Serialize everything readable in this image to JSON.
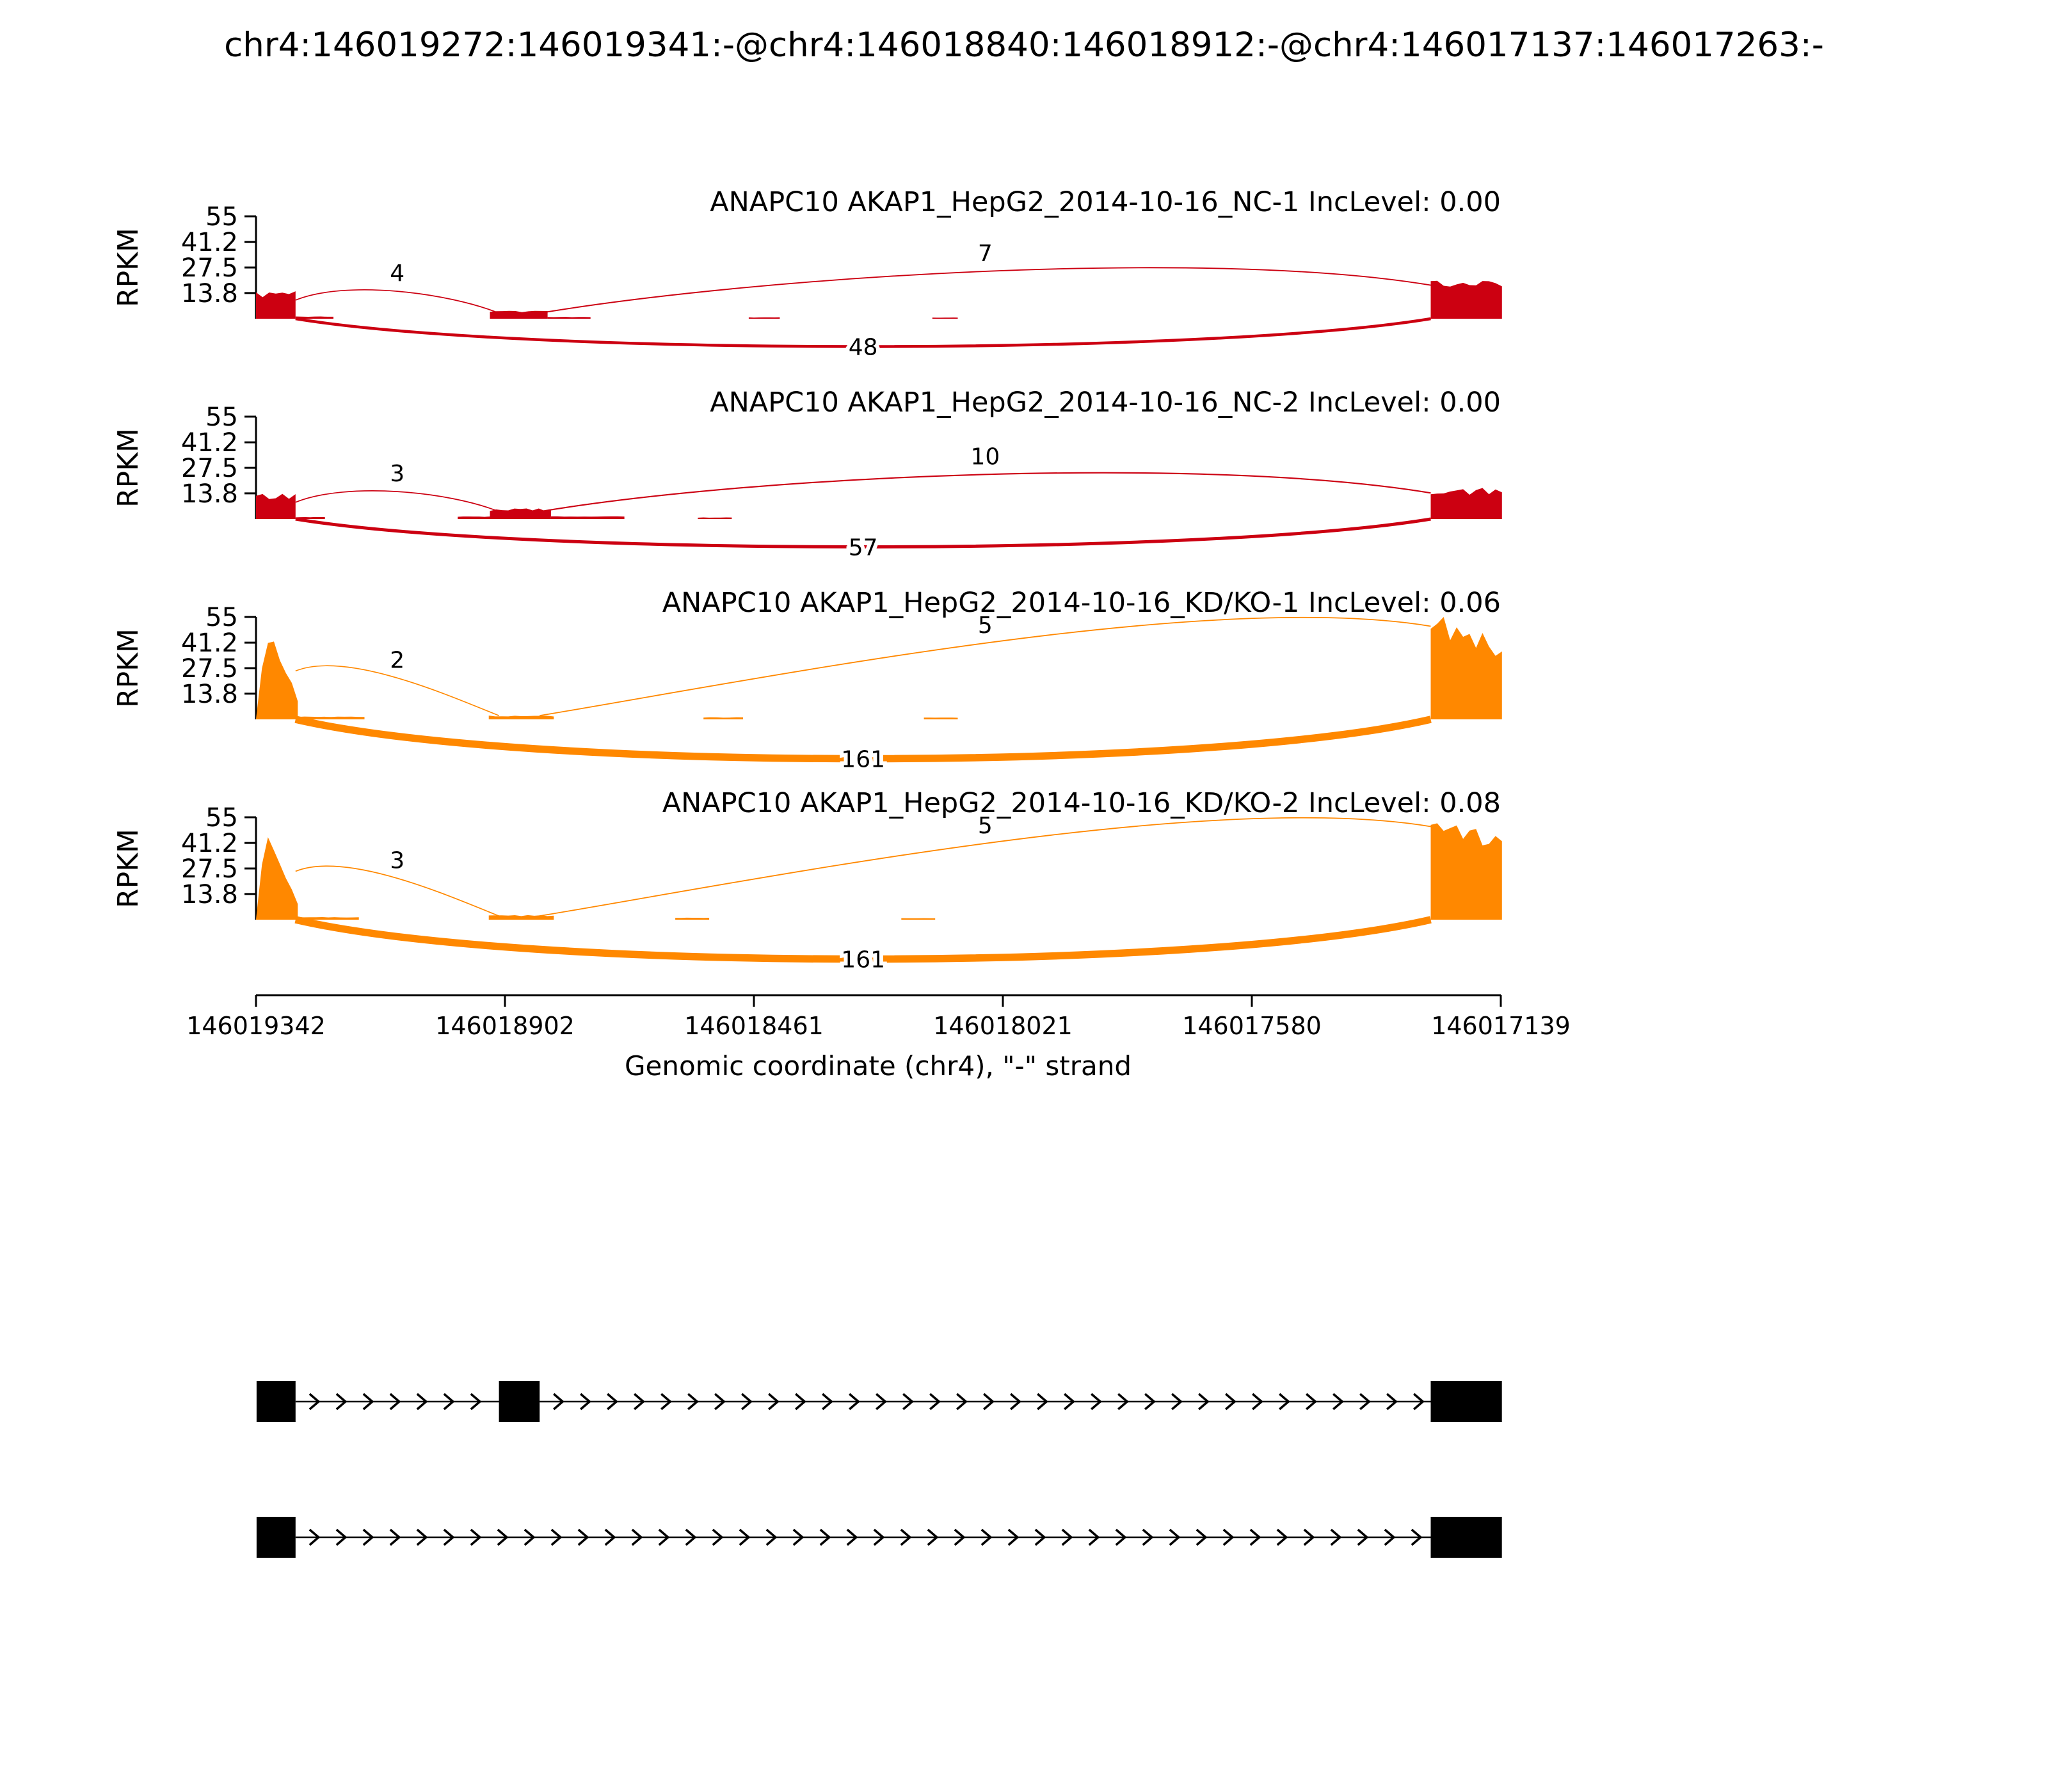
{
  "title": "chr4:146019272:146019341:-@chr4:146018840:146018912:-@chr4:146017137:146017263:-",
  "axes": {
    "ylabel": "RPKM",
    "yticks": [
      55,
      41.2,
      27.5,
      13.8
    ],
    "xlabel": "Genomic coordinate (chr4), \"-\" strand",
    "xticks": [
      "146019342",
      "146018902",
      "146018461",
      "146018021",
      "146017580",
      "146017139"
    ]
  },
  "chart_data": {
    "type": "sashimi",
    "gene": "ANAPC10",
    "chromosome": "chr4",
    "strand": "-",
    "x_range": [
      146019342,
      146017139
    ],
    "ymax": 55,
    "event_exons": [
      {
        "name": "upstream-exon",
        "start": 146019272,
        "end": 146019341
      },
      {
        "name": "skipped-exon",
        "start": 146018840,
        "end": 146018912
      },
      {
        "name": "downstream-exon",
        "start": 146017137,
        "end": 146017263
      }
    ],
    "tracks": [
      {
        "label": "ANAPC10 AKAP1_HepG2_2014-10-16_NC-1 IncLevel: 0.00",
        "sample": "AKAP1_HepG2_2014-10-16_NC-1",
        "inc_level": "0.00",
        "color": "#CC0011",
        "coverage": [
          {
            "name": "upstream-exon-coverage",
            "s": 146019342,
            "e": 146019272,
            "h": 13,
            "shape": "jag"
          },
          {
            "name": "intron-readthrough",
            "s": 146019272,
            "e": 146019205,
            "h": 1.1,
            "shape": "flat"
          },
          {
            "name": "skipped-exon-coverage",
            "s": 146018928,
            "e": 146018826,
            "h": 4,
            "shape": "jag"
          },
          {
            "name": "intron-readthrough",
            "s": 146018826,
            "e": 146018750,
            "h": 0.9,
            "shape": "flat"
          },
          {
            "name": "intron-signal",
            "s": 146018470,
            "e": 146018415,
            "h": 0.7,
            "shape": "flat"
          },
          {
            "name": "intron-signal",
            "s": 146018145,
            "e": 146018100,
            "h": 0.6,
            "shape": "flat"
          },
          {
            "name": "downstream-exon-coverage",
            "s": 146017263,
            "e": 146017137,
            "h": 19,
            "shape": "jag"
          }
        ],
        "junctions": [
          {
            "from": 146019272,
            "to": 146018912,
            "count": 4,
            "side": "top",
            "h1": 10,
            "h2": 3
          },
          {
            "from": 146018840,
            "to": 146017263,
            "count": 7,
            "side": "top",
            "h1": 3,
            "h2": 18
          },
          {
            "from": 146019272,
            "to": 146017263,
            "count": 48,
            "side": "bottom"
          }
        ]
      },
      {
        "label": "ANAPC10 AKAP1_HepG2_2014-10-16_NC-2 IncLevel: 0.00",
        "sample": "AKAP1_HepG2_2014-10-16_NC-2",
        "inc_level": "0.00",
        "color": "#CC0011",
        "coverage": [
          {
            "name": "upstream-exon-coverage",
            "s": 146019342,
            "e": 146019272,
            "h": 12,
            "shape": "jag"
          },
          {
            "name": "intron-readthrough",
            "s": 146019272,
            "e": 146019220,
            "h": 1.0,
            "shape": "flat"
          },
          {
            "name": "intron-readthrough",
            "s": 146018985,
            "e": 146018928,
            "h": 1.3,
            "shape": "flat"
          },
          {
            "name": "skipped-exon-coverage",
            "s": 146018928,
            "e": 146018820,
            "h": 5,
            "shape": "jag"
          },
          {
            "name": "intron-readthrough",
            "s": 146018820,
            "e": 146018690,
            "h": 1.4,
            "shape": "flat"
          },
          {
            "name": "intron-signal",
            "s": 146018560,
            "e": 146018500,
            "h": 0.8,
            "shape": "flat"
          },
          {
            "name": "downstream-exon-coverage",
            "s": 146017263,
            "e": 146017137,
            "h": 15,
            "shape": "jag"
          }
        ],
        "junctions": [
          {
            "from": 146019272,
            "to": 146018912,
            "count": 3,
            "side": "top",
            "h1": 9,
            "h2": 4
          },
          {
            "from": 146018840,
            "to": 146017263,
            "count": 10,
            "side": "top",
            "h1": 4,
            "h2": 14
          },
          {
            "from": 146019272,
            "to": 146017263,
            "count": 57,
            "side": "bottom"
          }
        ]
      },
      {
        "label": "ANAPC10 AKAP1_HepG2_2014-10-16_KD/KO-1 IncLevel: 0.06",
        "sample": "AKAP1_HepG2_2014-10-16_KD/KO-1",
        "inc_level": "0.06",
        "color": "#FF8800",
        "coverage": [
          {
            "name": "upstream-exon-coverage",
            "s": 146019342,
            "e": 146019268,
            "h": 46,
            "shape": "peak"
          },
          {
            "name": "intron-readthrough",
            "s": 146019268,
            "e": 146019150,
            "h": 1.4,
            "shape": "flat"
          },
          {
            "name": "skipped-exon-coverage",
            "s": 146018930,
            "e": 146018815,
            "h": 1.8,
            "shape": "jag"
          },
          {
            "name": "intron-signal",
            "s": 146018550,
            "e": 146018480,
            "h": 1.0,
            "shape": "flat"
          },
          {
            "name": "intron-signal",
            "s": 146018160,
            "e": 146018100,
            "h": 0.9,
            "shape": "flat"
          },
          {
            "name": "downstream-exon-coverage",
            "s": 146017263,
            "e": 146017137,
            "h": 53,
            "shape": "rampdown"
          }
        ],
        "junctions": [
          {
            "from": 146019272,
            "to": 146018912,
            "count": 2,
            "side": "top",
            "h1": 26,
            "h2": 2
          },
          {
            "from": 146018840,
            "to": 146017263,
            "count": 5,
            "side": "top",
            "h1": 2,
            "h2": 50
          },
          {
            "from": 146019272,
            "to": 146017263,
            "count": 161,
            "side": "bottom"
          }
        ]
      },
      {
        "label": "ANAPC10 AKAP1_HepG2_2014-10-16_KD/KO-2 IncLevel: 0.08",
        "sample": "AKAP1_HepG2_2014-10-16_KD/KO-2",
        "inc_level": "0.08",
        "color": "#FF8800",
        "coverage": [
          {
            "name": "upstream-exon-coverage",
            "s": 146019342,
            "e": 146019268,
            "h": 43,
            "shape": "peak"
          },
          {
            "name": "intron-readthrough",
            "s": 146019268,
            "e": 146019160,
            "h": 1.3,
            "shape": "flat"
          },
          {
            "name": "skipped-exon-coverage",
            "s": 146018930,
            "e": 146018815,
            "h": 2.2,
            "shape": "jag"
          },
          {
            "name": "intron-signal",
            "s": 146018600,
            "e": 146018540,
            "h": 1.0,
            "shape": "flat"
          },
          {
            "name": "intron-signal",
            "s": 146018200,
            "e": 146018140,
            "h": 0.8,
            "shape": "flat"
          },
          {
            "name": "downstream-exon-coverage",
            "s": 146017263,
            "e": 146017137,
            "h": 53,
            "shape": "rampdown"
          }
        ],
        "junctions": [
          {
            "from": 146019272,
            "to": 146018912,
            "count": 3,
            "side": "top",
            "h1": 26,
            "h2": 2
          },
          {
            "from": 146018840,
            "to": 146017263,
            "count": 5,
            "side": "top",
            "h1": 2,
            "h2": 50
          },
          {
            "from": 146019272,
            "to": 146017263,
            "count": 161,
            "side": "bottom"
          }
        ]
      }
    ],
    "isoforms": [
      {
        "name": "inclusion-isoform",
        "exons": [
          [
            146019341,
            146019272
          ],
          [
            146018912,
            146018840
          ],
          [
            146017263,
            146017137
          ]
        ]
      },
      {
        "name": "skipping-isoform",
        "exons": [
          [
            146019341,
            146019272
          ],
          [
            146017263,
            146017137
          ]
        ]
      }
    ]
  }
}
